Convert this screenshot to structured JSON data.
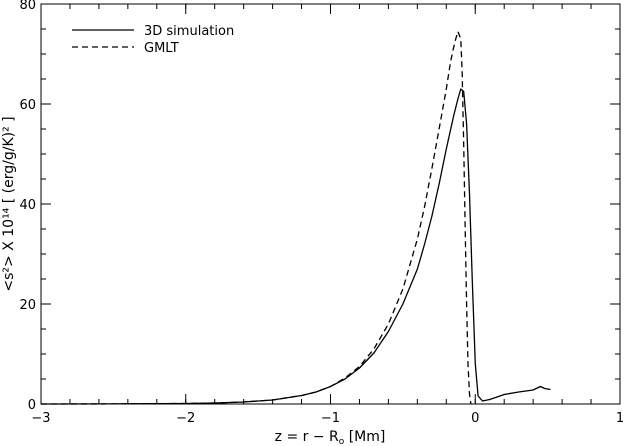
{
  "chart_data": {
    "type": "line",
    "xlabel": "z = r − R",
    "xlabel_sub": "o",
    "xlabel_unit": " [Mm]",
    "ylabel": "<s²> X 10¹⁴ [ (erg/g/K)² ]",
    "xlim": [
      -3,
      1
    ],
    "ylim": [
      0,
      80
    ],
    "xticks": [
      -3,
      -2,
      -1,
      0,
      1
    ],
    "xtick_labels": [
      "−3",
      "−2",
      "−1",
      "0",
      "1"
    ],
    "yticks": [
      0,
      20,
      40,
      60,
      80
    ],
    "ytick_labels": [
      "0",
      "20",
      "40",
      "60",
      "80"
    ],
    "grid": false,
    "legend_position": "top-left",
    "series": [
      {
        "name": "3D simulation",
        "style": "solid",
        "color": "#000000",
        "x": [
          -3.0,
          -2.5,
          -2.0,
          -1.8,
          -1.6,
          -1.4,
          -1.2,
          -1.1,
          -1.0,
          -0.9,
          -0.8,
          -0.7,
          -0.6,
          -0.5,
          -0.4,
          -0.35,
          -0.3,
          -0.25,
          -0.2,
          -0.15,
          -0.12,
          -0.1,
          -0.08,
          -0.06,
          -0.04,
          -0.02,
          0.0,
          0.02,
          0.05,
          0.1,
          0.15,
          0.2,
          0.3,
          0.4,
          0.45,
          0.48,
          0.52
        ],
        "y": [
          0.0,
          0.02,
          0.1,
          0.2,
          0.4,
          0.8,
          1.7,
          2.4,
          3.5,
          5.0,
          7.2,
          10.2,
          14.5,
          20.0,
          27.0,
          32.0,
          37.5,
          44.0,
          51.0,
          57.5,
          61.0,
          63.0,
          62.5,
          56.0,
          42.0,
          24.0,
          8.0,
          1.6,
          0.6,
          0.9,
          1.4,
          1.9,
          2.4,
          2.8,
          3.5,
          3.1,
          2.9
        ]
      },
      {
        "name": "GMLT",
        "style": "dashed",
        "color": "#000000",
        "x": [
          -3.0,
          -2.5,
          -2.0,
          -1.8,
          -1.6,
          -1.4,
          -1.2,
          -1.1,
          -1.0,
          -0.9,
          -0.8,
          -0.7,
          -0.6,
          -0.5,
          -0.4,
          -0.35,
          -0.3,
          -0.25,
          -0.2,
          -0.17,
          -0.14,
          -0.12,
          -0.1,
          -0.09,
          -0.08,
          -0.07,
          -0.06,
          -0.05,
          -0.04,
          -0.03
        ],
        "y": [
          0.0,
          0.02,
          0.1,
          0.2,
          0.4,
          0.8,
          1.7,
          2.4,
          3.5,
          5.2,
          7.5,
          11.0,
          16.0,
          23.0,
          33.0,
          39.5,
          47.0,
          55.0,
          63.0,
          68.5,
          72.5,
          74.5,
          73.0,
          66.0,
          52.0,
          36.0,
          20.0,
          8.0,
          2.0,
          0.0
        ]
      }
    ]
  }
}
